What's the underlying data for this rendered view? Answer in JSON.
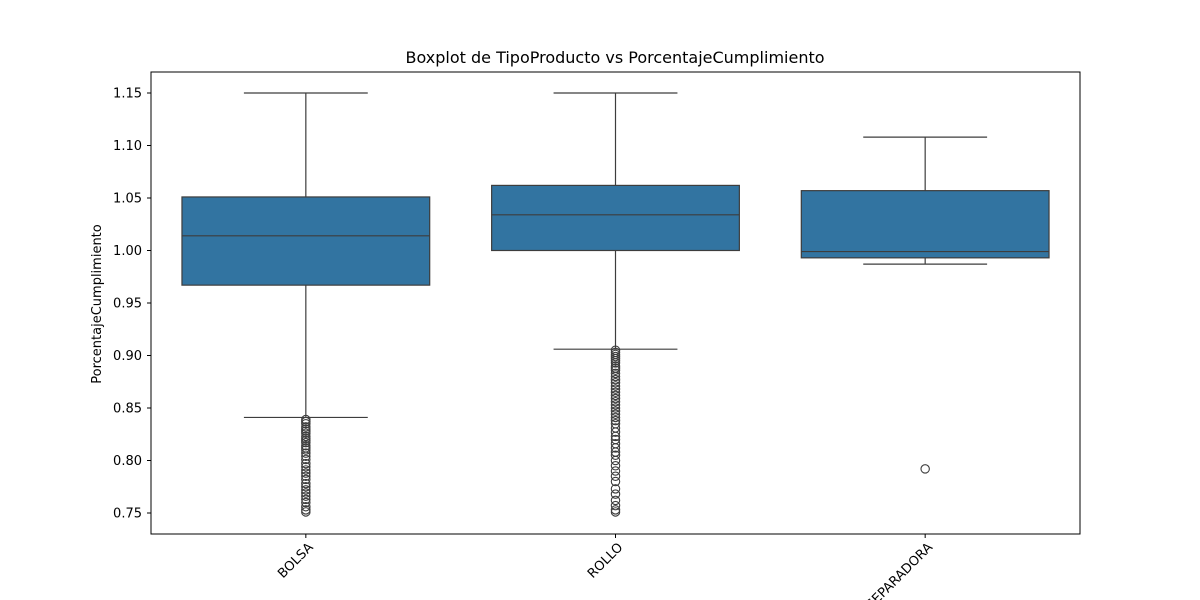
{
  "chart_data": {
    "type": "box",
    "title": "Boxplot de TipoProducto vs PorcentajeCumplimiento",
    "xlabel": "",
    "ylabel": "PorcentajeCumplimiento",
    "ylim": [
      0.73,
      1.17
    ],
    "yticks": [
      "0.75",
      "0.80",
      "0.85",
      "0.90",
      "0.95",
      "1.00",
      "1.05",
      "1.10",
      "1.15"
    ],
    "grid": false,
    "box_color": "#3274a1",
    "line_color": "#3d3d3d",
    "categories": [
      "BOLSA",
      "ROLLO",
      "SEPARADORA"
    ],
    "boxes": [
      {
        "category": "BOLSA",
        "whisker_low": 0.841,
        "q1": 0.967,
        "median": 1.014,
        "q3": 1.051,
        "whisker_high": 1.15,
        "outliers": [
          0.839,
          0.837,
          0.835,
          0.832,
          0.83,
          0.828,
          0.826,
          0.823,
          0.821,
          0.819,
          0.817,
          0.814,
          0.812,
          0.81,
          0.807,
          0.804,
          0.801,
          0.797,
          0.794,
          0.791,
          0.788,
          0.785,
          0.782,
          0.778,
          0.775,
          0.772,
          0.769,
          0.766,
          0.763,
          0.76,
          0.756,
          0.753,
          0.751
        ]
      },
      {
        "category": "ROLLO",
        "whisker_low": 0.906,
        "q1": 1.0,
        "median": 1.034,
        "q3": 1.062,
        "whisker_high": 1.15,
        "outliers": [
          0.905,
          0.903,
          0.901,
          0.899,
          0.897,
          0.895,
          0.893,
          0.89,
          0.888,
          0.886,
          0.883,
          0.88,
          0.877,
          0.874,
          0.871,
          0.868,
          0.865,
          0.862,
          0.859,
          0.856,
          0.853,
          0.85,
          0.847,
          0.844,
          0.841,
          0.838,
          0.835,
          0.831,
          0.827,
          0.823,
          0.82,
          0.816,
          0.812,
          0.808,
          0.805,
          0.8,
          0.795,
          0.79,
          0.785,
          0.78,
          0.773,
          0.768,
          0.762,
          0.757,
          0.753,
          0.751
        ]
      },
      {
        "category": "SEPARADORA",
        "whisker_low": 0.987,
        "q1": 0.993,
        "median": 0.999,
        "q3": 1.057,
        "whisker_high": 1.108,
        "outliers": [
          0.792
        ]
      }
    ]
  }
}
